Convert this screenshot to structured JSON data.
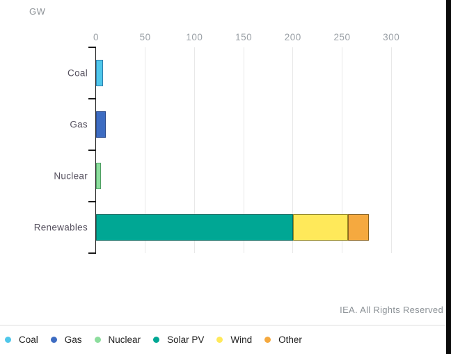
{
  "header": {
    "unit_label": "GW"
  },
  "footer": {
    "attribution": "IEA. All Rights Reserved"
  },
  "chart_data": {
    "type": "bar",
    "orientation": "horizontal",
    "stacked": true,
    "title": "",
    "xlabel": "GW",
    "ylabel": "",
    "xlim": [
      0,
      300
    ],
    "x_ticks": [
      0,
      50,
      100,
      150,
      200,
      250,
      300
    ],
    "grid": true,
    "categories": [
      "Coal",
      "Gas",
      "Nuclear",
      "Renewables"
    ],
    "series": [
      {
        "name": "Coal",
        "color": "#4fc7ea",
        "border_color": "#2e7fae",
        "values": [
          7,
          0,
          0,
          0
        ]
      },
      {
        "name": "Gas",
        "color": "#3d6cc2",
        "border_color": "#2a4a8c",
        "values": [
          0,
          10,
          0,
          0
        ]
      },
      {
        "name": "Nuclear",
        "color": "#8cdd9d",
        "border_color": "#4f9f63",
        "values": [
          0,
          0,
          5,
          0
        ]
      },
      {
        "name": "Solar PV",
        "color": "#00a794",
        "border_color": "#0d6b60",
        "values": [
          0,
          0,
          0,
          200
        ]
      },
      {
        "name": "Wind",
        "color": "#ffe95a",
        "border_color": "#94861f",
        "values": [
          0,
          0,
          0,
          56
        ]
      },
      {
        "name": "Other",
        "color": "#f5a93f",
        "border_color": "#8a611c",
        "values": [
          0,
          0,
          0,
          21
        ]
      }
    ],
    "legend_position": "bottom",
    "legend": [
      {
        "label": "Coal",
        "color": "#4fc7ea"
      },
      {
        "label": "Gas",
        "color": "#3d6cc2"
      },
      {
        "label": "Nuclear",
        "color": "#8cdd9d"
      },
      {
        "label": "Solar PV",
        "color": "#00a794"
      },
      {
        "label": "Wind",
        "color": "#ffe95a"
      },
      {
        "label": "Other",
        "color": "#f5a93f"
      }
    ]
  }
}
